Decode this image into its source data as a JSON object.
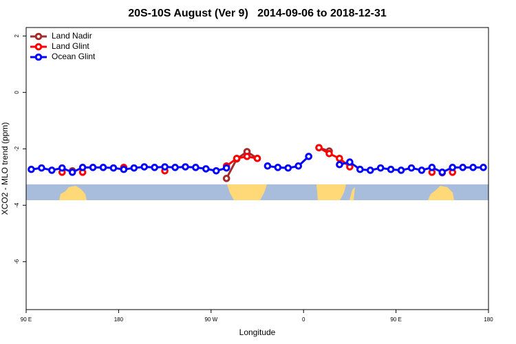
{
  "chart_data": {
    "type": "line",
    "title": "20S-10S August (Ver 9)   2014-09-06 to 2018-12-31",
    "x_label": "Longitude",
    "y_label": "XCO2 - MLO trend (ppm)",
    "x": [
      95,
      105,
      115,
      125,
      135,
      145,
      155,
      165,
      175,
      185,
      195,
      205,
      215,
      225,
      235,
      245,
      255,
      265,
      275,
      285,
      295,
      305,
      315,
      325,
      335,
      345,
      355,
      365,
      375,
      385,
      395,
      405,
      415,
      425,
      435,
      445,
      455,
      465,
      475,
      485,
      495,
      505,
      515,
      525,
      535
    ],
    "series": [
      {
        "name": "Land Nadir",
        "color": "#a52a2a",
        "values": [
          null,
          null,
          null,
          null,
          -2.78,
          null,
          null,
          null,
          null,
          null,
          null,
          null,
          null,
          null,
          null,
          null,
          null,
          null,
          null,
          -3.05,
          -2.36,
          -2.1,
          -2.34,
          null,
          null,
          null,
          null,
          null,
          -1.96,
          -2.08,
          null,
          null,
          null,
          null,
          null,
          null,
          null,
          null,
          null,
          null,
          -2.85,
          null,
          null,
          null,
          null
        ]
      },
      {
        "name": "Land Glint",
        "color": "#ff0000",
        "values": [
          null,
          null,
          null,
          -2.83,
          null,
          -2.83,
          null,
          null,
          null,
          -2.66,
          null,
          null,
          null,
          -2.78,
          null,
          null,
          null,
          null,
          null,
          -2.61,
          -2.34,
          -2.27,
          -2.34,
          null,
          null,
          null,
          null,
          null,
          -1.96,
          -2.17,
          -2.34,
          -2.64,
          null,
          null,
          null,
          null,
          null,
          null,
          null,
          -2.83,
          null,
          -2.83,
          null,
          null,
          null
        ]
      },
      {
        "name": "Ocean Glint",
        "color": "#0000ff",
        "values": [
          -2.73,
          -2.68,
          -2.76,
          -2.68,
          -2.83,
          -2.66,
          -2.66,
          -2.66,
          -2.68,
          -2.73,
          -2.68,
          -2.64,
          -2.66,
          -2.64,
          -2.66,
          -2.64,
          -2.66,
          -2.71,
          -2.78,
          -2.68,
          null,
          null,
          null,
          -2.61,
          -2.66,
          -2.68,
          -2.61,
          -2.27,
          null,
          null,
          -2.56,
          -2.47,
          -2.73,
          -2.76,
          -2.68,
          -2.73,
          -2.76,
          -2.68,
          -2.76,
          -2.66,
          -2.83,
          -2.66,
          -2.66,
          -2.66,
          -2.66
        ]
      }
    ],
    "xlim": [
      90,
      540
    ],
    "xticks": [
      {
        "value": 90,
        "label": "90 E"
      },
      180,
      {
        "value": 270,
        "label": "90 W"
      },
      {
        "value": 360,
        "label": "0"
      },
      {
        "value": 450,
        "label": "90 E"
      },
      {
        "value": 540,
        "label": "180"
      }
    ],
    "ylim": [
      -7.7,
      2.3
    ],
    "yticks": [
      -6,
      -4,
      -2,
      0,
      2
    ],
    "legend": "topleft"
  }
}
